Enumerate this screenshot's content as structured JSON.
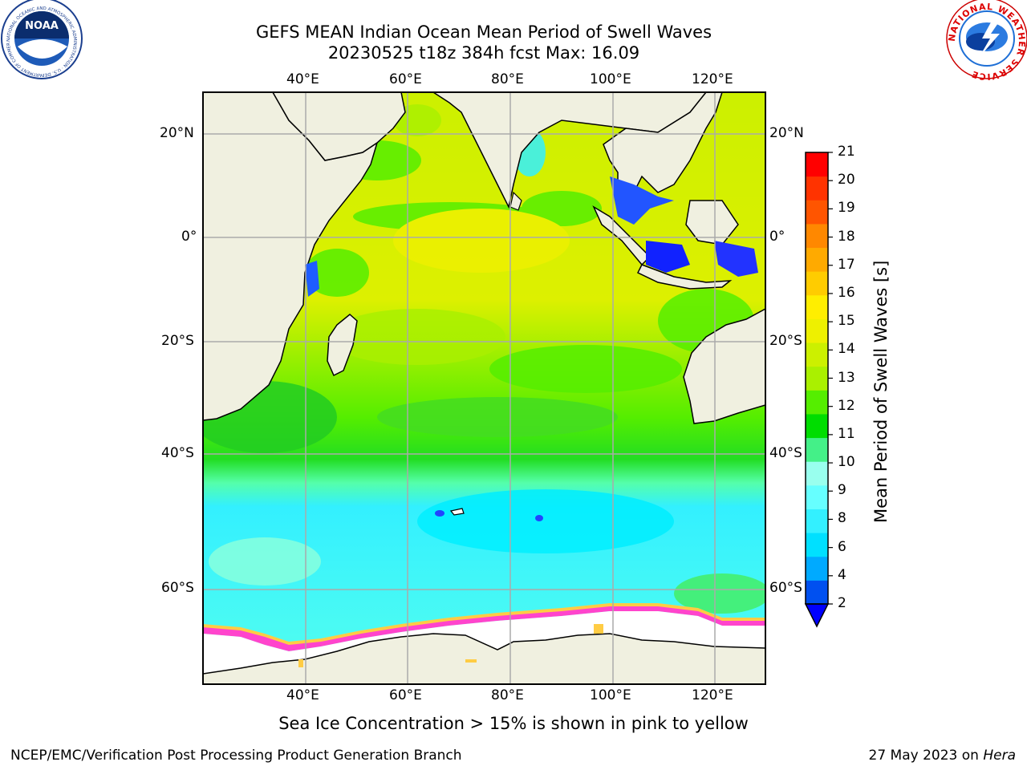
{
  "title_line1": "GEFS MEAN Indian Ocean Mean Period of Swell Waves",
  "title_line2": "20230525 t18z 384h fcst   Max: 16.09",
  "caption": "Sea Ice Concentration > 15% is shown in pink to yellow",
  "footer_left": "NCEP/EMC/Verification Post Processing Product Generation Branch",
  "footer_right_date": "27 May 2023 on",
  "footer_right_host": "Hera",
  "logos": {
    "noaa_text": "NOAA",
    "noaa_ring": "NATIONAL OCEANIC AND ATMOSPHERIC ADMINISTRATION · U.S. DEPARTMENT OF COMMERCE",
    "nws_ring": "NATIONAL WEATHER SERVICE"
  },
  "map": {
    "lon_labels": [
      "40°E",
      "60°E",
      "80°E",
      "100°E",
      "120°E"
    ],
    "lat_labels": [
      "20°N",
      "0°",
      "20°S",
      "40°S",
      "60°S"
    ],
    "lon_range": [
      20,
      130
    ],
    "lat_range": [
      -70,
      28
    ]
  },
  "colorbar": {
    "title": "Mean Period of Swell Waves [s]",
    "ticks": [
      "21",
      "20",
      "19",
      "18",
      "17",
      "16",
      "15",
      "14",
      "13",
      "12",
      "11",
      "10",
      "9",
      "8",
      "6",
      "4",
      "2"
    ],
    "colors_bottom_to_top": [
      "#0050f0",
      "#00aaff",
      "#00e0ff",
      "#33f0ff",
      "#66ffff",
      "#99ffee",
      "#44f088",
      "#00dd00",
      "#55ee00",
      "#aaf000",
      "#ccf000",
      "#eef000",
      "#ffee00",
      "#ffcc00",
      "#ffaa00",
      "#ff8800",
      "#ff5500",
      "#ff3300",
      "#ff0000"
    ],
    "extend_color": "#0000ff"
  },
  "colors": {
    "land": "#f0f0e0",
    "ocean_south": "#33eeff",
    "ocean_mid": "#44ee44",
    "ocean_north": "#ccf000",
    "ice_white": "#ffffff",
    "ice_edge": "#ff44cc",
    "ice_yellow": "#ffcc44"
  }
}
